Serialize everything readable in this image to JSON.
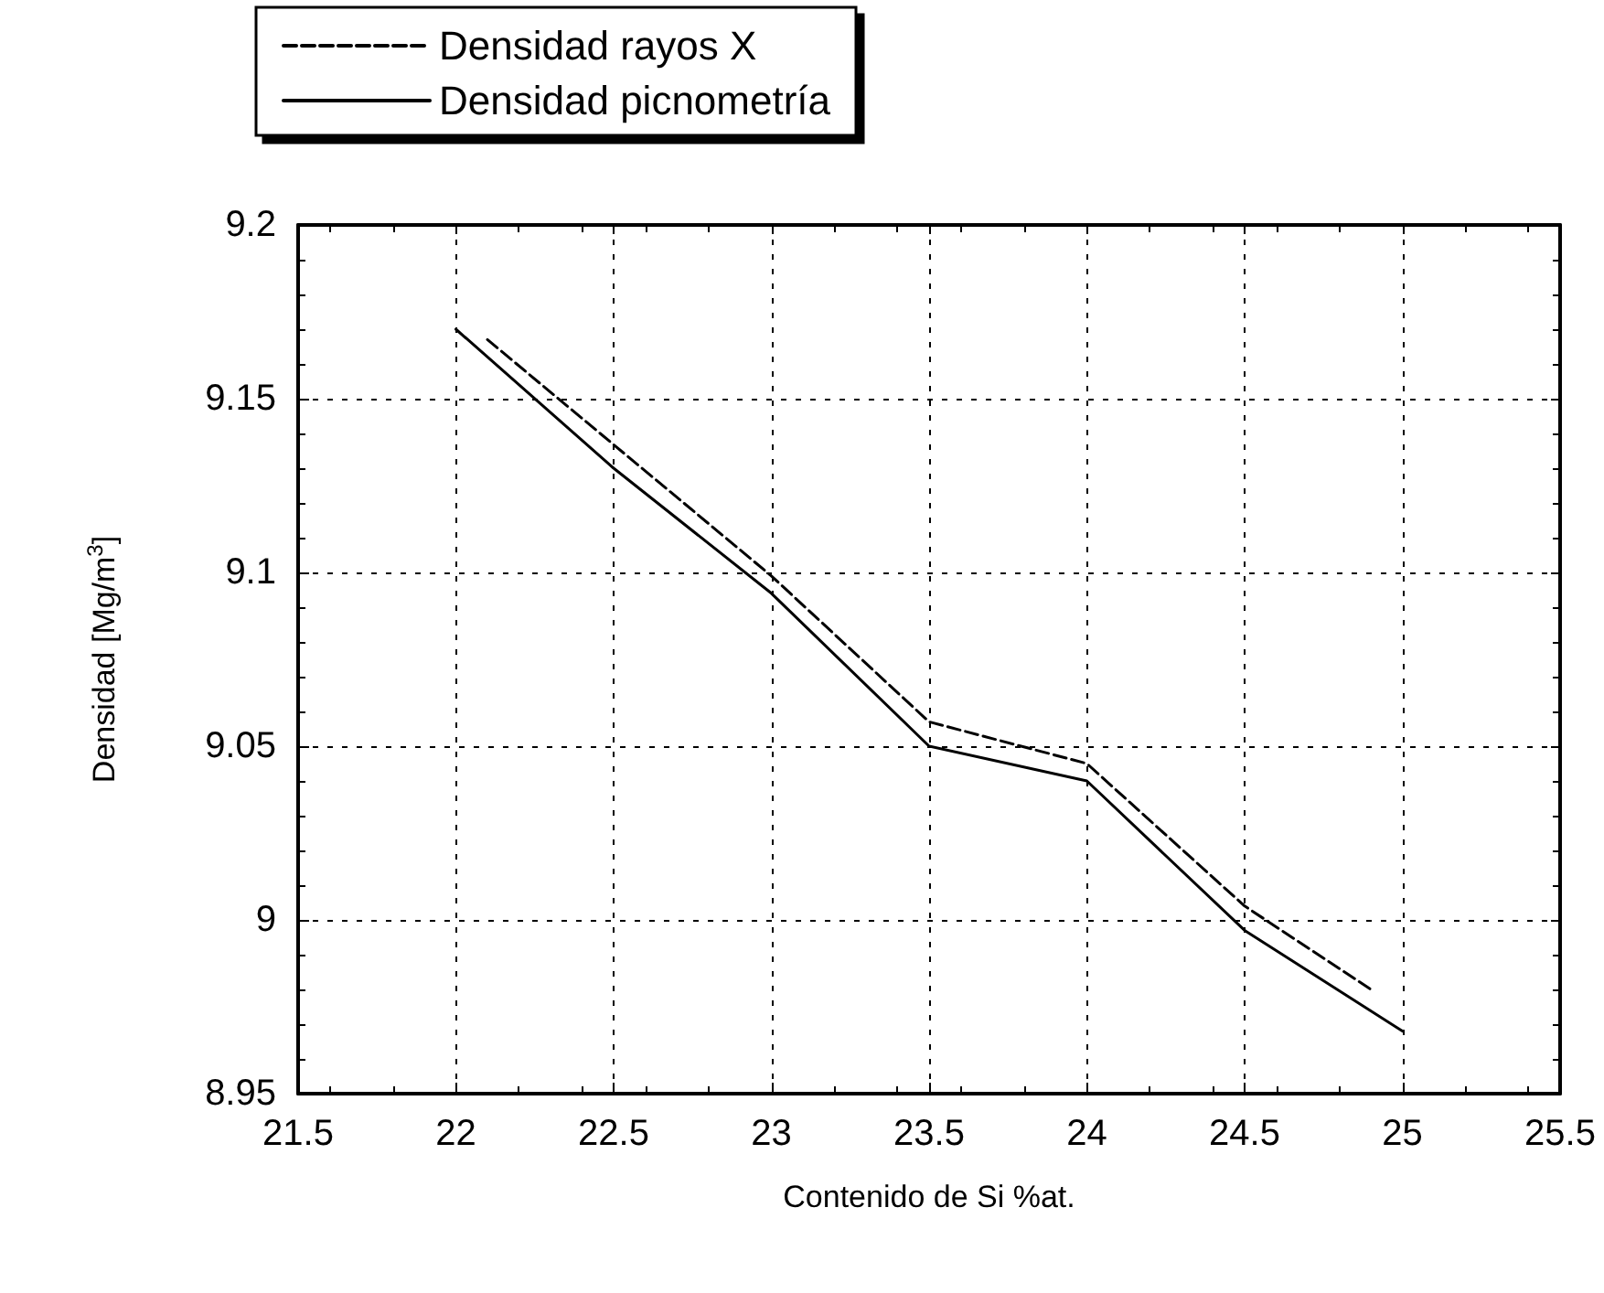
{
  "chart_data": {
    "type": "line",
    "xlabel": "Contenido de Si %at.",
    "ylabel": "Densidad [Mg/m$^{3}$]",
    "series": [
      {
        "name": "Densidad rayos X",
        "color": "#000000",
        "line_style": "dashed",
        "x": [
          22.1,
          23,
          23.5,
          24,
          24.5,
          24.9
        ],
        "values": [
          9.167,
          9.099,
          9.057,
          9.045,
          9.004,
          8.98
        ]
      },
      {
        "name": "Densidad picnometría",
        "color": "#000000",
        "line_style": "solid",
        "x": [
          22,
          22.5,
          23,
          23.5,
          24,
          24.5,
          25
        ],
        "values": [
          9.17,
          9.13,
          9.094,
          9.05,
          9.04,
          8.997,
          8.968
        ]
      }
    ],
    "xlim": [
      21.5,
      25.5
    ],
    "xticks": [
      21.5,
      22,
      22.5,
      23,
      23.5,
      24,
      24.5,
      25,
      25.5
    ],
    "ylim": [
      8.95,
      9.2
    ],
    "yticks": [
      8.95,
      9,
      9.05,
      9.1,
      9.15,
      9.2
    ],
    "grid": true,
    "legend": "top left",
    "marker": "none"
  }
}
